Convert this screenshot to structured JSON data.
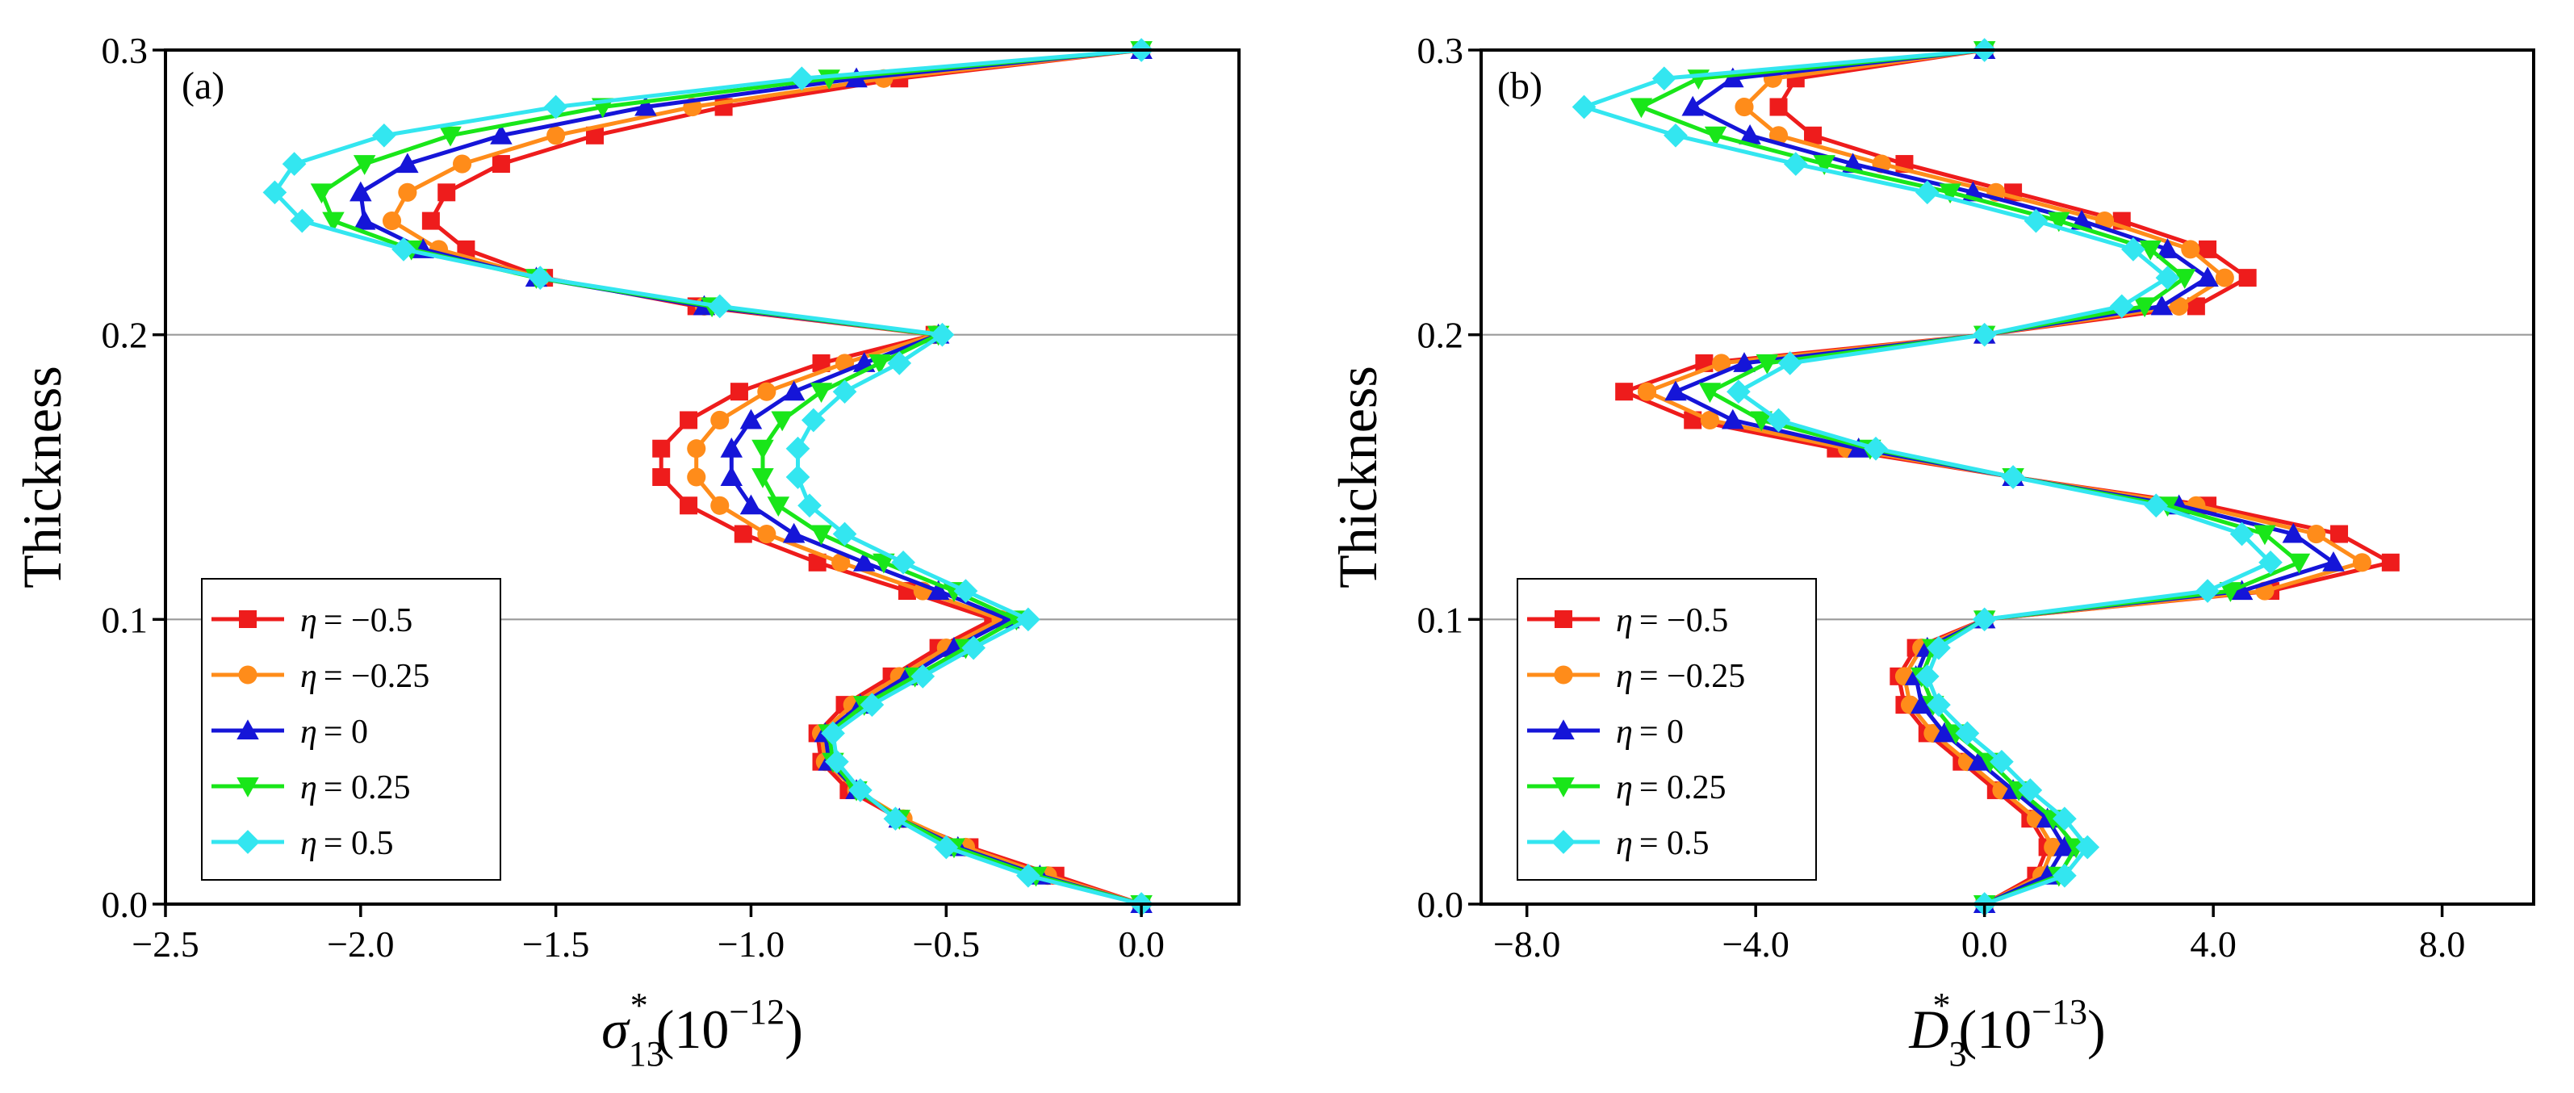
{
  "legend": {
    "entries": [
      {
        "prefix": "η",
        "value": "= −0.5"
      },
      {
        "prefix": "η",
        "value": "= −0.25"
      },
      {
        "prefix": "η",
        "value": "= 0"
      },
      {
        "prefix": "η",
        "value": "= 0.25"
      },
      {
        "prefix": "η",
        "value": "= 0.5"
      }
    ]
  },
  "colors": {
    "s1": "#ee1c1c",
    "s2": "#ff8c1a",
    "s3": "#1515d8",
    "s4": "#19e619",
    "s5": "#33e6f0",
    "refline": "#9a9a9a"
  },
  "markers": [
    "square",
    "circle",
    "triangle-up",
    "triangle-down",
    "diamond"
  ],
  "chart_data": [
    {
      "type": "line",
      "panel_label": "(a)",
      "xlabel": {
        "main": "σ",
        "sub": "13",
        "sup": "*",
        "unit": "(10",
        "unit_sup": "−12",
        "close": ")"
      },
      "ylabel": "Thickness",
      "xlim": [
        -2.5,
        0.25
      ],
      "ylim": [
        0,
        0.3
      ],
      "xticks": [
        -2.5,
        -2.0,
        -1.5,
        -1.0,
        -0.5,
        0.0
      ],
      "xtick_labels": [
        "−2.5",
        "−2.0",
        "−1.5",
        "−1.0",
        "−0.5",
        "0.0"
      ],
      "yticks": [
        0.0,
        0.1,
        0.2,
        0.3
      ],
      "ytick_labels": [
        "0.0",
        "0.1",
        "0.2",
        "0.3"
      ],
      "reference_lines_y": [
        0.1,
        0.2
      ],
      "legend_position": "bottom-left",
      "y": [
        0,
        0.01,
        0.02,
        0.03,
        0.04,
        0.05,
        0.06,
        0.07,
        0.08,
        0.09,
        0.1,
        0.11,
        0.12,
        0.13,
        0.14,
        0.15,
        0.16,
        0.17,
        0.18,
        0.19,
        0.2,
        0.21,
        0.22,
        0.23,
        0.24,
        0.25,
        0.26,
        0.27,
        0.28,
        0.29,
        0.3
      ],
      "series": [
        {
          "name": "η = −0.5",
          "x": [
            0,
            -0.22,
            -0.44,
            -0.62,
            -0.75,
            -0.82,
            -0.83,
            -0.76,
            -0.64,
            -0.52,
            -0.38,
            -0.6,
            -0.83,
            -1.02,
            -1.16,
            -1.23,
            -1.23,
            -1.16,
            -1.03,
            -0.82,
            -0.53,
            -1.14,
            -1.53,
            -1.73,
            -1.82,
            -1.78,
            -1.64,
            -1.4,
            -1.07,
            -0.62,
            0
          ]
        },
        {
          "name": "η = −0.25",
          "x": [
            0,
            -0.24,
            -0.45,
            -0.61,
            -0.73,
            -0.81,
            -0.82,
            -0.74,
            -0.62,
            -0.5,
            -0.36,
            -0.56,
            -0.77,
            -0.96,
            -1.08,
            -1.14,
            -1.14,
            -1.08,
            -0.96,
            -0.76,
            -0.53,
            -1.12,
            -1.54,
            -1.8,
            -1.92,
            -1.88,
            -1.74,
            -1.5,
            -1.15,
            -0.66,
            0
          ]
        },
        {
          "name": "η = 0",
          "x": [
            0,
            -0.26,
            -0.47,
            -0.62,
            -0.73,
            -0.8,
            -0.81,
            -0.72,
            -0.6,
            -0.48,
            -0.34,
            -0.52,
            -0.71,
            -0.89,
            -1.0,
            -1.05,
            -1.05,
            -1.0,
            -0.89,
            -0.71,
            -0.52,
            -1.12,
            -1.55,
            -1.84,
            -1.99,
            -2.0,
            -1.88,
            -1.64,
            -1.27,
            -0.73,
            0
          ]
        },
        {
          "name": "η = 0.25",
          "x": [
            0,
            -0.27,
            -0.48,
            -0.62,
            -0.73,
            -0.79,
            -0.8,
            -0.71,
            -0.58,
            -0.45,
            -0.32,
            -0.48,
            -0.66,
            -0.82,
            -0.93,
            -0.97,
            -0.97,
            -0.92,
            -0.82,
            -0.67,
            -0.52,
            -1.1,
            -1.55,
            -1.87,
            -2.07,
            -2.1,
            -1.99,
            -1.77,
            -1.38,
            -0.8,
            0
          ]
        },
        {
          "name": "η = 0.5",
          "x": [
            0,
            -0.29,
            -0.5,
            -0.63,
            -0.72,
            -0.78,
            -0.79,
            -0.69,
            -0.56,
            -0.43,
            -0.29,
            -0.45,
            -0.61,
            -0.76,
            -0.85,
            -0.88,
            -0.88,
            -0.84,
            -0.76,
            -0.62,
            -0.51,
            -1.08,
            -1.54,
            -1.89,
            -2.15,
            -2.22,
            -2.17,
            -1.94,
            -1.5,
            -0.87,
            0
          ]
        }
      ]
    },
    {
      "type": "line",
      "panel_label": "(b)",
      "xlabel": {
        "main": "D",
        "sub": "3",
        "sup": "*",
        "unit": "(10",
        "unit_sup": "−13",
        "close": ")"
      },
      "ylabel": "Thickness",
      "xlim": [
        -8.8,
        9.6
      ],
      "ylim": [
        0,
        0.3
      ],
      "xticks": [
        -8.0,
        -4.0,
        0.0,
        4.0,
        8.0
      ],
      "xtick_labels": [
        "−8.0",
        "−4.0",
        "0.0",
        "4.0",
        "8.0"
      ],
      "yticks": [
        0.0,
        0.1,
        0.2,
        0.3
      ],
      "ytick_labels": [
        "0.0",
        "0.1",
        "0.2",
        "0.3"
      ],
      "reference_lines_y": [
        0.1,
        0.2
      ],
      "legend_position": "bottom-left",
      "y": [
        0,
        0.01,
        0.02,
        0.03,
        0.04,
        0.05,
        0.06,
        0.07,
        0.08,
        0.09,
        0.1,
        0.11,
        0.12,
        0.13,
        0.14,
        0.15,
        0.16,
        0.17,
        0.18,
        0.19,
        0.2,
        0.21,
        0.22,
        0.23,
        0.24,
        0.25,
        0.26,
        0.27,
        0.28,
        0.29,
        0.3
      ],
      "series": [
        {
          "name": "η = −0.5",
          "x": [
            0,
            0.9,
            1.1,
            0.8,
            0.2,
            -0.4,
            -1.0,
            -1.4,
            -1.5,
            -1.2,
            0,
            5.0,
            7.1,
            6.2,
            3.9,
            0.5,
            -2.6,
            -5.1,
            -6.3,
            -4.9,
            0,
            3.7,
            4.6,
            3.9,
            2.4,
            0.5,
            -1.4,
            -3.0,
            -3.6,
            -3.3,
            0
          ]
        },
        {
          "name": "η = −0.25",
          "x": [
            0,
            1.0,
            1.2,
            0.9,
            0.3,
            -0.3,
            -0.9,
            -1.3,
            -1.4,
            -1.1,
            0,
            4.9,
            6.6,
            5.8,
            3.7,
            0.5,
            -2.4,
            -4.8,
            -5.9,
            -4.6,
            0,
            3.4,
            4.2,
            3.6,
            2.1,
            0.2,
            -1.8,
            -3.6,
            -4.2,
            -3.7,
            0
          ]
        },
        {
          "name": "η = 0",
          "x": [
            0,
            1.1,
            1.4,
            1.1,
            0.5,
            -0.1,
            -0.7,
            -1.1,
            -1.2,
            -1.0,
            0,
            4.5,
            6.1,
            5.4,
            3.4,
            0.5,
            -2.2,
            -4.4,
            -5.4,
            -4.2,
            0,
            3.1,
            3.9,
            3.2,
            1.7,
            -0.2,
            -2.3,
            -4.1,
            -5.1,
            -4.4,
            0
          ]
        },
        {
          "name": "η = 0.25",
          "x": [
            0,
            1.3,
            1.6,
            1.2,
            0.6,
            0.1,
            -0.5,
            -0.9,
            -1.1,
            -0.9,
            0,
            4.3,
            5.5,
            4.9,
            3.2,
            0.5,
            -2.0,
            -3.9,
            -4.8,
            -3.8,
            0,
            2.8,
            3.5,
            2.9,
            1.3,
            -0.6,
            -2.8,
            -4.7,
            -6.0,
            -5.0,
            0
          ]
        },
        {
          "name": "η = 0.5",
          "x": [
            0,
            1.4,
            1.8,
            1.4,
            0.8,
            0.3,
            -0.3,
            -0.8,
            -1.0,
            -0.8,
            0,
            3.9,
            5.0,
            4.5,
            3.0,
            0.5,
            -1.9,
            -3.6,
            -4.3,
            -3.4,
            0,
            2.4,
            3.2,
            2.6,
            0.9,
            -1.0,
            -3.3,
            -5.4,
            -7.0,
            -5.6,
            0
          ]
        }
      ]
    }
  ]
}
